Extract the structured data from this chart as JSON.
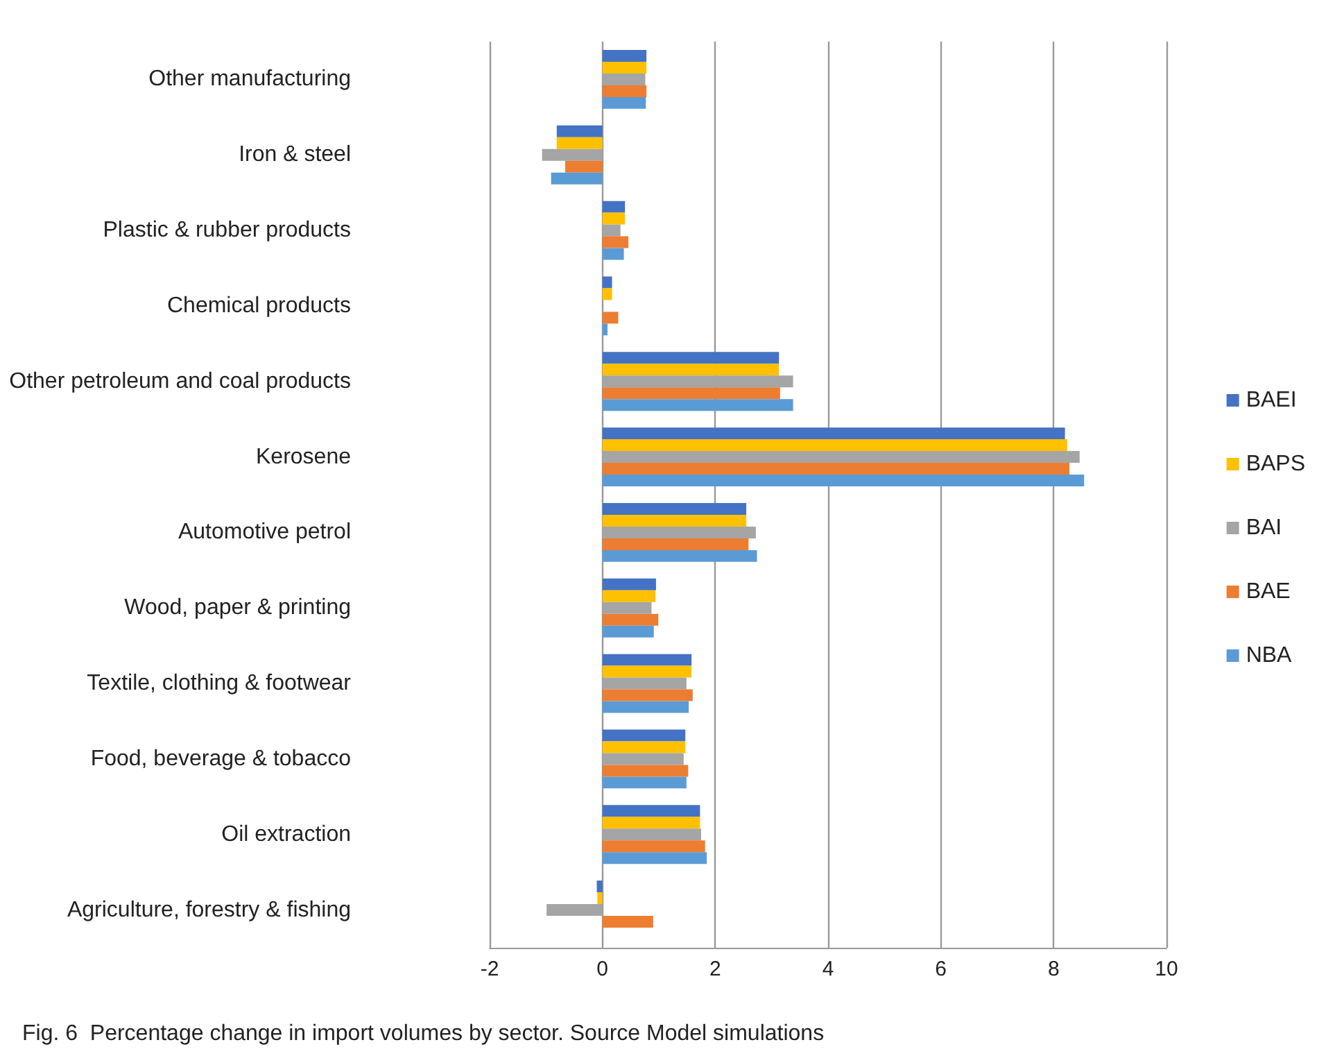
{
  "chart_data": {
    "type": "bar",
    "orientation": "horizontal",
    "categories": [
      "Other manufacturing",
      "Iron & steel",
      "Plastic & rubber products",
      "Chemical products",
      "Other petroleum and coal products",
      "Kerosene",
      "Automotive petrol",
      "Wood, paper & printing",
      "Textile, clothing & footwear",
      "Food, beverage & tobacco",
      "Oil extraction",
      "Agriculture, forestry & fishing"
    ],
    "series": [
      {
        "name": "BAEI",
        "color": "#4472c4",
        "values": [
          0.78,
          -0.81,
          0.4,
          0.17,
          3.13,
          8.2,
          2.55,
          0.95,
          1.58,
          1.47,
          1.73,
          -0.1
        ]
      },
      {
        "name": "BAPS",
        "color": "#ffc000",
        "values": [
          0.78,
          -0.81,
          0.4,
          0.17,
          3.13,
          8.24,
          2.55,
          0.94,
          1.58,
          1.47,
          1.73,
          -0.09
        ]
      },
      {
        "name": "BAI",
        "color": "#a5a5a5",
        "values": [
          0.76,
          -1.07,
          0.32,
          0,
          3.38,
          8.46,
          2.72,
          0.87,
          1.49,
          1.44,
          1.75,
          -0.99
        ]
      },
      {
        "name": "BAE",
        "color": "#ed7d31",
        "values": [
          0.78,
          -0.66,
          0.46,
          0.28,
          3.15,
          8.28,
          2.59,
          0.99,
          1.6,
          1.52,
          1.82,
          0.9
        ]
      },
      {
        "name": "NBA",
        "color": "#5b9bd5",
        "values": [
          0.77,
          -0.91,
          0.38,
          0.09,
          3.38,
          8.54,
          2.74,
          0.91,
          1.53,
          1.49,
          1.85,
          0
        ]
      }
    ],
    "xlim": [
      -2,
      10
    ],
    "xticks": [
      -2,
      0,
      2,
      4,
      6,
      8,
      10
    ],
    "grid": "x",
    "legend": "right",
    "annotations": [
      "Fig. 6  Percentage change in import volumes by sector. Source Model simulations"
    ]
  }
}
